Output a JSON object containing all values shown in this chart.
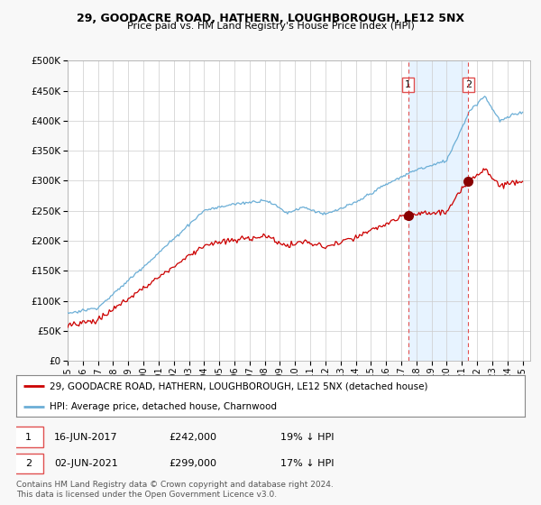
{
  "title1": "29, GOODACRE ROAD, HATHERN, LOUGHBOROUGH, LE12 5NX",
  "title2": "Price paid vs. HM Land Registry's House Price Index (HPI)",
  "legend_line1": "29, GOODACRE ROAD, HATHERN, LOUGHBOROUGH, LE12 5NX (detached house)",
  "legend_line2": "HPI: Average price, detached house, Charnwood",
  "annotation1_date": "16-JUN-2017",
  "annotation1_price": "£242,000",
  "annotation1_hpi": "19% ↓ HPI",
  "annotation2_date": "02-JUN-2021",
  "annotation2_price": "£299,000",
  "annotation2_hpi": "17% ↓ HPI",
  "footnote": "Contains HM Land Registry data © Crown copyright and database right 2024.\nThis data is licensed under the Open Government Licence v3.0.",
  "sale1_year": 2017.46,
  "sale1_value": 242000,
  "sale2_year": 2021.42,
  "sale2_value": 299000,
  "hpi_color": "#6baed6",
  "sale_color": "#cc0000",
  "vline_color": "#e05050",
  "shade_color": "#ddeeff",
  "background_color": "#f8f8f8",
  "plot_bg_color": "#ffffff",
  "ylim": [
    0,
    500000
  ],
  "xlim_start": 1995,
  "xlim_end": 2025.5
}
